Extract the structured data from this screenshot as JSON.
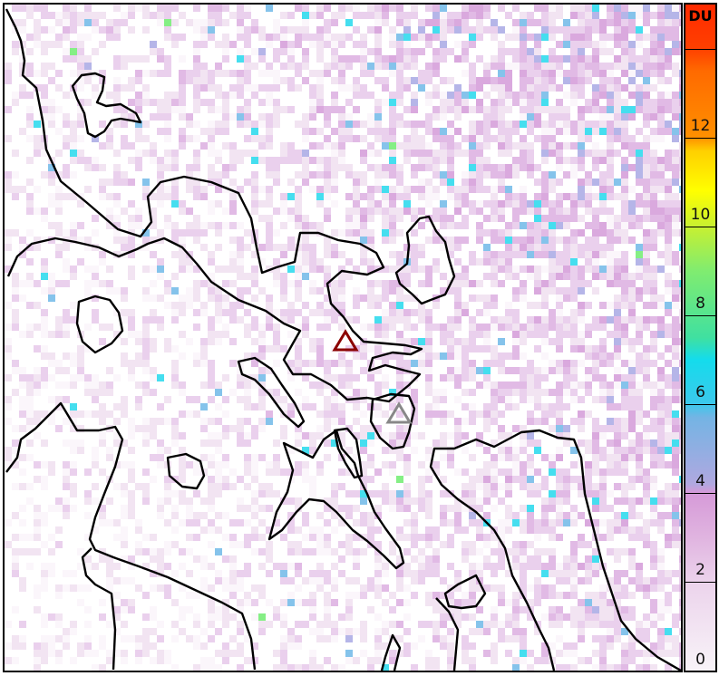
{
  "colorbar": {
    "unit": "DU",
    "ticks": [
      "0",
      "2",
      "4",
      "6",
      "8",
      "10",
      "12"
    ],
    "range": [
      0,
      15
    ],
    "colors": [
      "#f8f3f8",
      "#d69ad8",
      "#74b4e4",
      "#14dcec",
      "#80ec70",
      "#ffff00",
      "#ff9000",
      "#ff2a00"
    ]
  },
  "markers": [
    {
      "name": "volcano-active",
      "color": "#8b0000",
      "shape": "triangle"
    },
    {
      "name": "volcano-other",
      "color": "#888888",
      "shape": "triangle"
    }
  ],
  "coastline_color": "#000000"
}
